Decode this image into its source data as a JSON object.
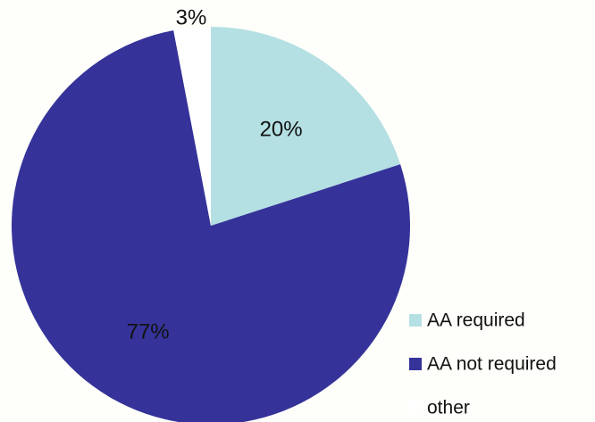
{
  "chart_data": {
    "type": "pie",
    "slices": [
      {
        "name": "AA required",
        "value": 20,
        "label": "20%",
        "color": "#b5e0e3"
      },
      {
        "name": "AA not required",
        "value": 77,
        "label": "77%",
        "color": "#353399"
      },
      {
        "name": "other",
        "value": 3,
        "label": "3%",
        "color": "#ffffff"
      }
    ],
    "legend": {
      "placement": "bottom-right",
      "entries": [
        "AA required",
        "AA not required",
        "other"
      ]
    }
  },
  "colors": {
    "background": "#fefefa",
    "label_text": "#111111"
  }
}
